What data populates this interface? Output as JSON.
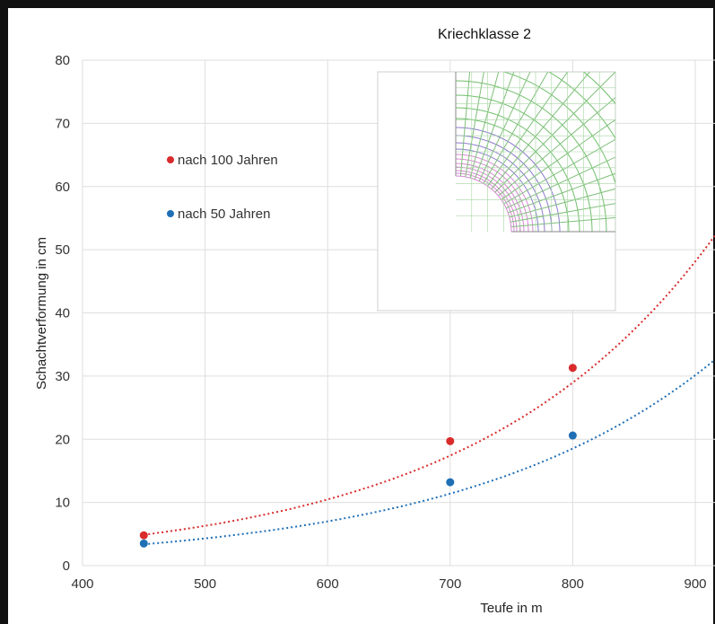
{
  "chart_data": {
    "type": "scatter",
    "title": "Kriechklasse 2",
    "xlabel": "Teufe in m",
    "ylabel": "Schachtverformung in cm",
    "xlim": [
      400,
      920
    ],
    "ylim": [
      0,
      80
    ],
    "x_ticks": [
      "400",
      "500",
      "600",
      "700",
      "800",
      "900"
    ],
    "y_ticks": [
      "0",
      "10",
      "20",
      "30",
      "40",
      "50",
      "60",
      "70",
      "80"
    ],
    "grid": true,
    "legend_position": "left",
    "series": [
      {
        "name": "nach 100 Jahren",
        "color": "#d92b2b",
        "points": [
          {
            "x": 450,
            "y": 4.8
          },
          {
            "x": 700,
            "y": 19.7
          },
          {
            "x": 800,
            "y": 31.3
          }
        ],
        "trendline": {
          "type": "exponential",
          "a": 0.4963,
          "b": 0.005083
        }
      },
      {
        "name": "nach 50 Jahren",
        "color": "#1f6fb5",
        "points": [
          {
            "x": 450,
            "y": 3.5
          },
          {
            "x": 700,
            "y": 13.2
          },
          {
            "x": 800,
            "y": 20.6
          }
        ],
        "trendline": {
          "type": "exponential",
          "a": 0.3781,
          "b": 0.004865
        }
      }
    ]
  }
}
